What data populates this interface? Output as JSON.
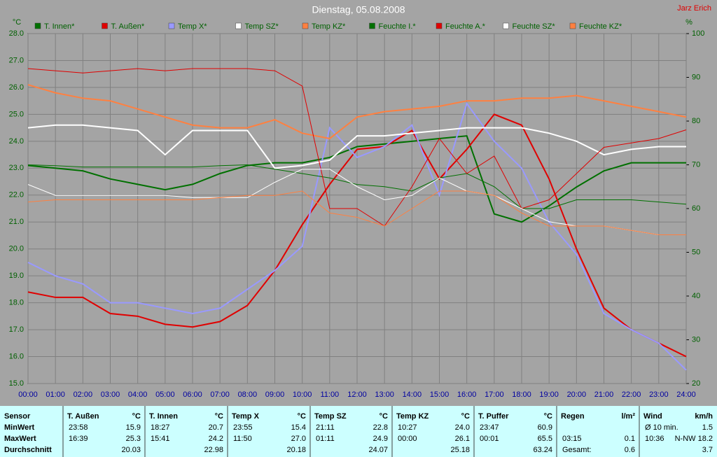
{
  "chart_data": {
    "type": "line",
    "title": "Dienstag, 05.08.2008",
    "annotations": [
      "Jarz Erich"
    ],
    "ylabel": "°C",
    "y2label": "%",
    "x": [
      0,
      1,
      2,
      3,
      4,
      5,
      6,
      7,
      8,
      9,
      10,
      11,
      12,
      13,
      14,
      15,
      16,
      17,
      18,
      19,
      20,
      21,
      22,
      23,
      24
    ],
    "xlim": [
      0,
      24
    ],
    "xticks": [
      {
        "value": 0,
        "label": "00:00"
      },
      {
        "value": 1,
        "label": "01:00"
      },
      {
        "value": 2,
        "label": "02:00"
      },
      {
        "value": 3,
        "label": "03:00"
      },
      {
        "value": 4,
        "label": "04:00"
      },
      {
        "value": 5,
        "label": "05:00"
      },
      {
        "value": 6,
        "label": "06:00"
      },
      {
        "value": 7,
        "label": "07:00"
      },
      {
        "value": 8,
        "label": "08:00"
      },
      {
        "value": 9,
        "label": "09:00"
      },
      {
        "value": 10,
        "label": "10:00"
      },
      {
        "value": 11,
        "label": "11:00"
      },
      {
        "value": 12,
        "label": "12:00"
      },
      {
        "value": 13,
        "label": "13:00"
      },
      {
        "value": 14,
        "label": "14:00"
      },
      {
        "value": 15,
        "label": "15:00"
      },
      {
        "value": 16,
        "label": "16:00"
      },
      {
        "value": 17,
        "label": "17:00"
      },
      {
        "value": 18,
        "label": "18:00"
      },
      {
        "value": 19,
        "label": "19:00"
      },
      {
        "value": 20,
        "label": "20:00"
      },
      {
        "value": 21,
        "label": "21:00"
      },
      {
        "value": 22,
        "label": "22:00"
      },
      {
        "value": 23,
        "label": "23:00"
      },
      {
        "value": 24,
        "label": "24:00"
      }
    ],
    "ylim": [
      15,
      28
    ],
    "yticks": [
      {
        "value": 15,
        "label": "15.0"
      },
      {
        "value": 16,
        "label": "16.0"
      },
      {
        "value": 17,
        "label": "17.0"
      },
      {
        "value": 18,
        "label": "18.0"
      },
      {
        "value": 19,
        "label": "19.0"
      },
      {
        "value": 20,
        "label": "20.0"
      },
      {
        "value": 21,
        "label": "21.0"
      },
      {
        "value": 22,
        "label": "22.0"
      },
      {
        "value": 23,
        "label": "23.0"
      },
      {
        "value": 24,
        "label": "24.0"
      },
      {
        "value": 25,
        "label": "25.0"
      },
      {
        "value": 26,
        "label": "26.0"
      },
      {
        "value": 27,
        "label": "27.0"
      },
      {
        "value": 28,
        "label": "28.0"
      }
    ],
    "y2lim": [
      20,
      100
    ],
    "y2ticks": [
      20,
      30,
      40,
      50,
      60,
      70,
      80,
      90,
      100
    ],
    "grid": true,
    "series": [
      {
        "name": "T. Innen*",
        "color": "#007000",
        "line_width": 2,
        "values": [
          23.1,
          23.0,
          22.9,
          22.6,
          22.4,
          22.2,
          22.4,
          22.8,
          23.1,
          23.2,
          23.2,
          23.4,
          23.8,
          23.9,
          24.0,
          24.1,
          24.2,
          21.3,
          21.0,
          21.6,
          22.3,
          22.9,
          23.2,
          23.2,
          23.2
        ]
      },
      {
        "name": "T. Außen*",
        "color": "#e00000",
        "line_width": 2,
        "values": [
          18.4,
          18.2,
          18.2,
          17.6,
          17.5,
          17.2,
          17.1,
          17.3,
          17.9,
          19.2,
          20.9,
          22.4,
          23.7,
          23.8,
          24.4,
          22.6,
          23.7,
          25.0,
          24.6,
          22.6,
          20.0,
          17.8,
          17.0,
          16.5,
          16.0
        ]
      },
      {
        "name": "Temp X*",
        "color": "#9999ff",
        "line_width": 2,
        "values": [
          19.5,
          19.0,
          18.7,
          18.0,
          18.0,
          17.8,
          17.6,
          17.8,
          18.5,
          19.2,
          20.1,
          24.5,
          23.4,
          23.8,
          24.6,
          22.0,
          25.4,
          24.0,
          23.0,
          21.0,
          19.8,
          17.6,
          17.0,
          16.5,
          15.5
        ]
      },
      {
        "name": "Temp SZ*",
        "color": "#ffffff",
        "line_width": 2,
        "values": [
          24.5,
          24.6,
          24.6,
          24.5,
          24.4,
          23.5,
          24.4,
          24.4,
          24.4,
          23.0,
          23.1,
          23.3,
          24.2,
          24.2,
          24.3,
          24.4,
          24.5,
          24.5,
          24.5,
          24.3,
          24.0,
          23.5,
          23.7,
          23.8,
          23.8
        ]
      },
      {
        "name": "Temp KZ*",
        "color": "#ff8040",
        "line_width": 2,
        "values": [
          26.1,
          25.8,
          25.6,
          25.5,
          25.2,
          24.9,
          24.6,
          24.5,
          24.5,
          24.8,
          24.3,
          24.1,
          24.9,
          25.1,
          25.2,
          25.3,
          25.5,
          25.5,
          25.6,
          25.6,
          25.7,
          25.5,
          25.3,
          25.1,
          24.9
        ]
      },
      {
        "name": "Feuchte I.*",
        "color": "#007000",
        "line_width": 1,
        "axis": "y2",
        "values": [
          70,
          69.8,
          69.5,
          69.5,
          69.5,
          69.5,
          69.5,
          69.8,
          70,
          69,
          68,
          67,
          65.5,
          65,
          64,
          67,
          68,
          65,
          60,
          60,
          62,
          62,
          62,
          61.5,
          61
        ]
      },
      {
        "name": "Feuchte A.*",
        "color": "#e00000",
        "line_width": 1,
        "axis": "y2",
        "values": [
          92,
          91.5,
          91,
          91.5,
          92,
          91.5,
          92,
          92,
          92,
          91.5,
          88,
          60,
          60,
          56,
          65,
          76,
          68,
          72,
          60,
          62,
          68,
          74,
          75,
          76,
          78
        ]
      },
      {
        "name": "Feuchte SZ*",
        "color": "#ffffff",
        "line_width": 1,
        "axis": "y2",
        "values": [
          65.5,
          63,
          63,
          63,
          63,
          63,
          62.5,
          62.5,
          62.5,
          66,
          69,
          69,
          65,
          62,
          63,
          67,
          64,
          63,
          60,
          57,
          56,
          56,
          55,
          54,
          54
        ]
      },
      {
        "name": "Feuchte KZ*",
        "color": "#ff8040",
        "line_width": 1,
        "axis": "y2",
        "values": [
          61.5,
          62,
          62,
          62,
          62,
          62,
          62,
          62.5,
          63,
          63,
          64,
          59,
          58,
          56,
          60,
          64,
          64,
          63,
          59,
          56,
          56,
          56,
          55,
          54,
          54
        ]
      }
    ]
  },
  "stats": {
    "row_labels": [
      "Sensor",
      "MinWert",
      "MaxWert",
      "Durchschnitt"
    ],
    "groups": [
      {
        "name": "T. Außen",
        "unit": "°C",
        "rows": [
          [
            "23:58",
            "15.9"
          ],
          [
            "16:39",
            "25.3"
          ],
          [
            "20.03"
          ]
        ]
      },
      {
        "name": "T. Innen",
        "unit": "°C",
        "rows": [
          [
            "18:27",
            "20.7"
          ],
          [
            "15:41",
            "24.2"
          ],
          [
            "22.98"
          ]
        ]
      },
      {
        "name": "Temp X",
        "unit": "°C",
        "rows": [
          [
            "23:55",
            "15.4"
          ],
          [
            "11:50",
            "27.0"
          ],
          [
            "20.18"
          ]
        ]
      },
      {
        "name": "Temp SZ",
        "unit": "°C",
        "rows": [
          [
            "21:11",
            "22.8"
          ],
          [
            "01:11",
            "24.9"
          ],
          [
            "24.07"
          ]
        ]
      },
      {
        "name": "Temp KZ",
        "unit": "°C",
        "rows": [
          [
            "10:27",
            "24.0"
          ],
          [
            "00:00",
            "26.1"
          ],
          [
            "25.18"
          ]
        ]
      },
      {
        "name": "T. Puffer",
        "unit": "°C",
        "rows": [
          [
            "23:47",
            "60.9"
          ],
          [
            "00:01",
            "65.5"
          ],
          [
            "63.24"
          ]
        ]
      },
      {
        "name": "Regen",
        "unit": "l/m²",
        "rows": [
          [],
          [
            "03:15",
            "0.1"
          ],
          [
            "Gesamt:",
            "0.6"
          ]
        ]
      },
      {
        "name": "Wind",
        "unit": "km/h",
        "rows": [
          [
            "Ø 10 min.",
            "1.5"
          ],
          [
            "10:36",
            "N-NW 18.2"
          ],
          [
            "3.7"
          ]
        ]
      }
    ]
  }
}
